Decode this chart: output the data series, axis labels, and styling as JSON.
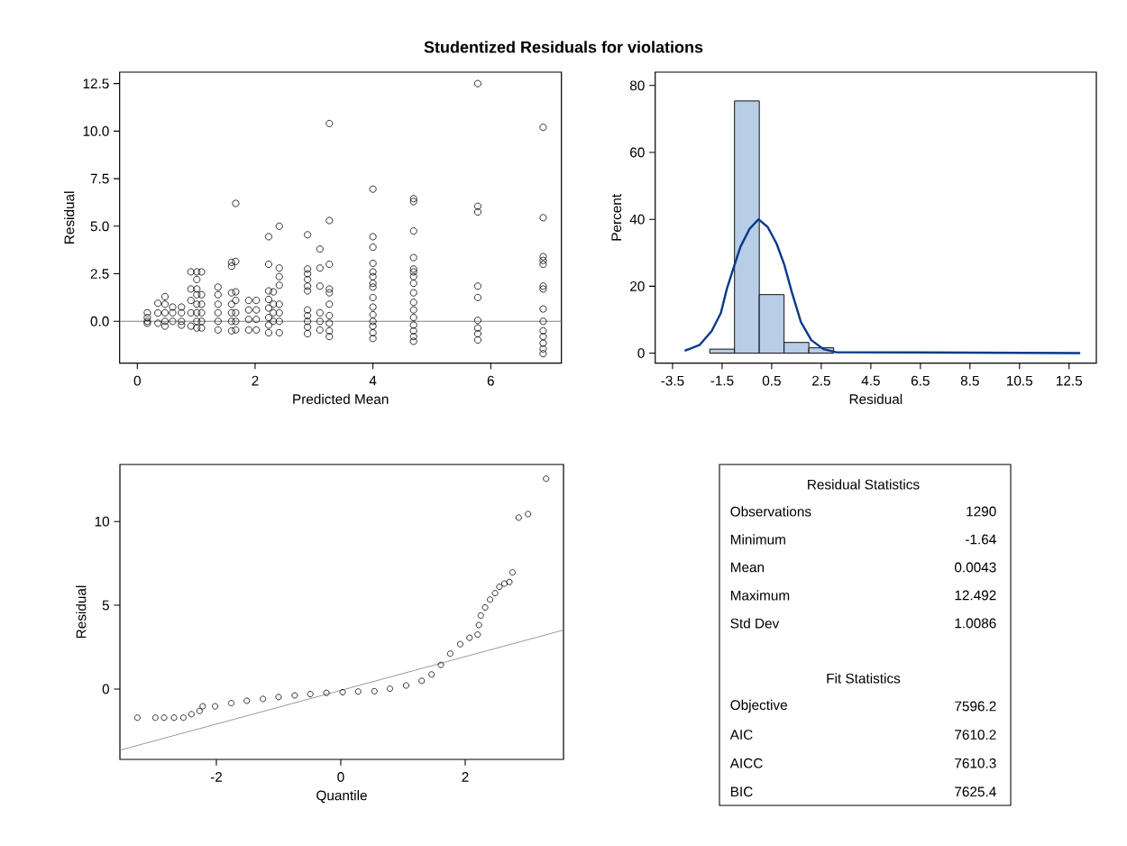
{
  "chart_data": [
    {
      "type": "scatter",
      "title": "Studentized Residuals for violations",
      "xlabel": "Predicted Mean",
      "ylabel": "Residual",
      "color": "#000000",
      "marker": "circle",
      "x": [
        0.17,
        0.17,
        0.17,
        0.17,
        0.35,
        0.35,
        0.35,
        0.47,
        0.47,
        0.47,
        0.47,
        0.47,
        0.6,
        0.6,
        0.6,
        0.75,
        0.75,
        0.75,
        0.75,
        0.91,
        0.91,
        0.91,
        0.91,
        0.91,
        1.01,
        1.01,
        1.01,
        1.01,
        1.01,
        1.01,
        1.01,
        1.01,
        1.09,
        1.09,
        1.09,
        1.09,
        1.09,
        1.09,
        1.37,
        1.37,
        1.37,
        1.37,
        1.37,
        1.37,
        1.6,
        1.6,
        1.6,
        1.6,
        1.6,
        1.6,
        1.6,
        1.67,
        1.67,
        1.67,
        1.67,
        1.67,
        1.67,
        1.67,
        1.89,
        1.89,
        1.89,
        1.89,
        2.02,
        2.02,
        2.02,
        2.02,
        2.23,
        2.23,
        2.23,
        2.23,
        2.23,
        2.23,
        2.23,
        2.23,
        2.31,
        2.31,
        2.31,
        2.31,
        2.41,
        2.41,
        2.41,
        2.41,
        2.41,
        2.41,
        2.41,
        2.41,
        2.89,
        2.89,
        2.89,
        2.89,
        2.89,
        2.89,
        2.89,
        2.89,
        2.89,
        2.89,
        2.89,
        3.1,
        3.1,
        3.1,
        3.1,
        3.1,
        3.1,
        3.26,
        3.26,
        3.26,
        3.26,
        3.26,
        3.26,
        3.26,
        3.26,
        3.26,
        3.26,
        4.0,
        4.0,
        4.0,
        4.0,
        4.0,
        4.0,
        4.0,
        4.0,
        4.0,
        4.0,
        4.0,
        4.0,
        4.0,
        4.0,
        4.0,
        4.69,
        4.69,
        4.69,
        4.69,
        4.69,
        4.69,
        4.69,
        4.69,
        4.69,
        4.69,
        4.69,
        4.69,
        4.69,
        4.69,
        4.69,
        4.69,
        5.78,
        5.78,
        5.78,
        5.78,
        5.78,
        5.78,
        5.78,
        5.78,
        5.78,
        6.89,
        6.89,
        6.89,
        6.89,
        6.89,
        6.89,
        6.89,
        6.89,
        6.89,
        6.89,
        6.89,
        6.89,
        6.89,
        6.89
      ],
      "values": [
        0.45,
        0.2,
        0.0,
        -0.1,
        0.95,
        0.44,
        -0.1,
        1.3,
        0.9,
        0.45,
        0.0,
        -0.25,
        0.75,
        0.45,
        0.0,
        0.75,
        0.45,
        0.0,
        -0.2,
        2.6,
        1.7,
        1.1,
        0.45,
        -0.25,
        2.6,
        2.2,
        1.7,
        1.4,
        0.9,
        0.45,
        0.0,
        -0.35,
        2.6,
        1.4,
        0.9,
        0.45,
        0.0,
        -0.35,
        1.8,
        1.4,
        0.9,
        0.45,
        0.0,
        -0.45,
        3.1,
        2.9,
        1.5,
        0.9,
        0.45,
        0.0,
        -0.5,
        6.2,
        3.15,
        1.55,
        1.1,
        0.45,
        0.0,
        -0.45,
        1.1,
        0.6,
        0.1,
        -0.45,
        1.1,
        0.6,
        0.1,
        -0.45,
        4.45,
        3.0,
        1.6,
        1.15,
        0.7,
        0.2,
        -0.2,
        -0.6,
        1.55,
        0.9,
        0.45,
        0.0,
        5.0,
        2.8,
        2.35,
        1.9,
        0.9,
        0.45,
        0.0,
        -0.6,
        4.55,
        2.75,
        2.5,
        2.2,
        1.85,
        1.6,
        0.6,
        0.3,
        0.0,
        -0.3,
        -0.65,
        3.8,
        2.8,
        1.85,
        0.45,
        0.0,
        -0.45,
        10.4,
        5.3,
        3.0,
        1.7,
        1.5,
        0.9,
        0.3,
        -0.1,
        -0.5,
        -0.8,
        6.95,
        4.45,
        3.9,
        3.05,
        2.6,
        2.35,
        2.0,
        1.8,
        1.25,
        0.75,
        0.35,
        0.0,
        -0.25,
        -0.6,
        -0.9,
        6.45,
        6.3,
        4.75,
        3.35,
        2.75,
        2.6,
        2.35,
        2.0,
        1.5,
        1.0,
        0.6,
        0.2,
        -0.2,
        -0.5,
        -0.8,
        -1.05,
        12.5,
        6.05,
        5.75,
        1.85,
        1.25,
        0.05,
        -0.35,
        -0.65,
        -0.98,
        10.2,
        5.45,
        3.4,
        3.2,
        3.0,
        1.85,
        1.7,
        0.65,
        0.0,
        -0.5,
        -0.8,
        -1.15,
        -1.45,
        -1.7
      ],
      "xlim": [
        -0.3,
        7.2
      ],
      "ylim": [
        -2.2,
        13.1
      ],
      "xticks": [
        0,
        2,
        4,
        6
      ],
      "yticks": [
        {
          "value": 0,
          "label": "0.0"
        },
        2.5,
        {
          "value": 5,
          "label": "5.0"
        },
        7.5,
        {
          "value": 10,
          "label": "10.0"
        },
        12.5
      ],
      "ref_lines": [
        {
          "axis": "y",
          "value": 0,
          "color": "#808080"
        }
      ]
    },
    {
      "type": "histogram",
      "xlabel": "Residual",
      "ylabel": "Percent",
      "series": [
        {
          "type": "histogram",
          "bins": [
            -2,
            -1,
            0,
            1,
            2,
            3
          ],
          "values": [
            1.2,
            75.4,
            17.5,
            3.2,
            1.6
          ],
          "color": "#b8cde6"
        },
        {
          "type": "line",
          "color": "#0b3a86",
          "x": [
            -3.01,
            -2.4,
            -1.92,
            -1.55,
            -1.31,
            -1.0,
            -0.76,
            -0.39,
            -0.03,
            0.34,
            0.7,
            1.01,
            1.31,
            1.68,
            2.1,
            2.59,
            3.08,
            12.95
          ],
          "values": [
            0.7,
            2.5,
            6.6,
            12,
            19.2,
            26.4,
            31.8,
            37.2,
            40,
            37.7,
            32.7,
            26.4,
            18.3,
            9.3,
            3.9,
            1.2,
            0.3,
            0
          ]
        }
      ],
      "xlim": [
        -4.2,
        13.6
      ],
      "ylim": [
        -3,
        84
      ],
      "xticks": [
        -3.5,
        -1.5,
        0.5,
        2.5,
        4.5,
        6.5,
        8.5,
        10.5,
        12.5
      ],
      "yticks": [
        0,
        20,
        40,
        60,
        80
      ]
    },
    {
      "type": "scatter",
      "xlabel": "Quantile",
      "ylabel": "Residual",
      "series": [
        {
          "color": "#000000",
          "marker": "circle",
          "x": [
            -3.27,
            -2.98,
            -2.84,
            -2.68,
            -2.53,
            -2.4,
            -2.27,
            -2.22,
            -2.02,
            -1.76,
            -1.51,
            -1.25,
            -1.0,
            -0.74,
            -0.49,
            -0.23,
            0.03,
            0.28,
            0.54,
            0.79,
            1.05,
            1.3,
            1.46,
            1.61,
            1.76,
            1.92,
            2.07,
            2.2,
            2.22,
            2.25,
            2.32,
            2.4,
            2.48,
            2.55,
            2.63,
            2.71,
            2.76,
            2.86,
            3.01,
            3.3
          ],
          "values": [
            -1.71,
            -1.71,
            -1.71,
            -1.71,
            -1.71,
            -1.5,
            -1.31,
            -1.03,
            -1.03,
            -0.84,
            -0.7,
            -0.59,
            -0.48,
            -0.38,
            -0.3,
            -0.23,
            -0.19,
            -0.15,
            -0.13,
            0.02,
            0.21,
            0.49,
            0.87,
            1.44,
            2.11,
            2.68,
            3.06,
            3.25,
            3.82,
            4.39,
            4.87,
            5.34,
            5.72,
            6.1,
            6.29,
            6.39,
            6.96,
            10.23,
            10.44,
            12.55
          ]
        },
        {
          "type": "line",
          "color": "#808080",
          "x": [
            -3.55,
            3.58
          ],
          "values": [
            -3.65,
            3.52
          ]
        }
      ],
      "xlim": [
        -3.55,
        3.58
      ],
      "ylim": [
        -4.2,
        13.4
      ],
      "xticks": [
        -2,
        0,
        2
      ],
      "yticks": [
        0,
        5,
        10
      ]
    },
    {
      "type": "other",
      "title": "Residual Statistics",
      "annotations": [
        "Observations",
        "1290",
        "Minimum",
        "-1.64",
        "Mean",
        "0.0043",
        "Maximum",
        "12.492",
        "Std Dev",
        "1.0086"
      ]
    },
    {
      "type": "other",
      "title": "Fit Statistics",
      "annotations": [
        "Objective",
        "7596.2",
        "AIC",
        "7610.2",
        "AICC",
        "7610.3",
        "BIC",
        "7625.4"
      ]
    }
  ]
}
